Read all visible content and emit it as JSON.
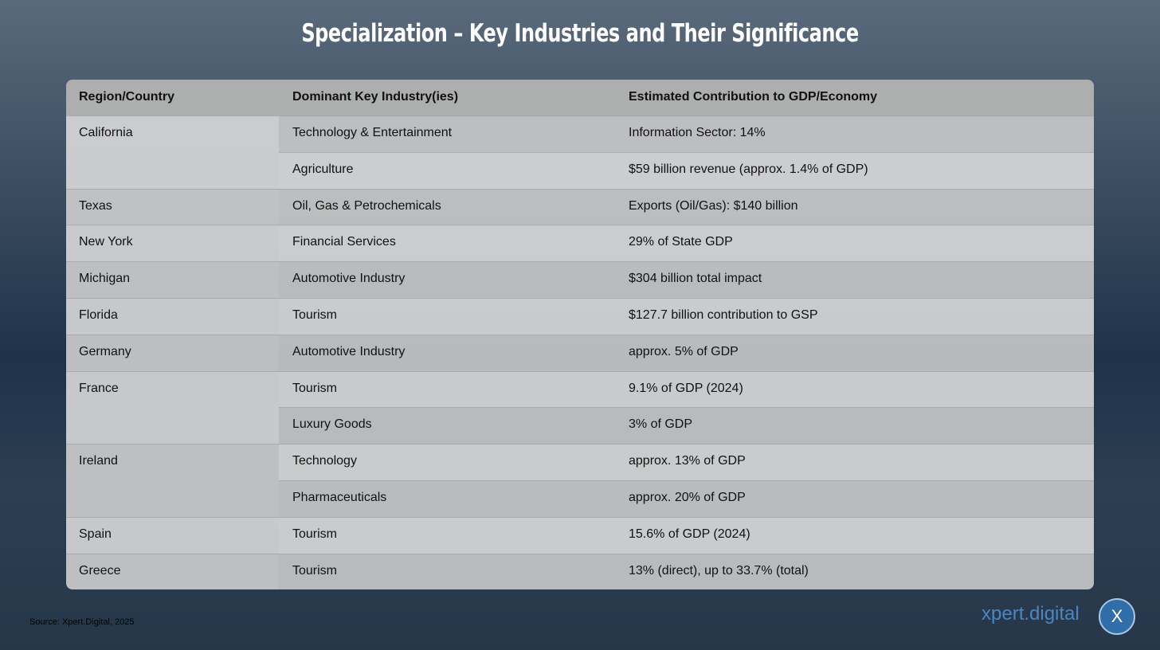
{
  "header": {
    "title": "Specialization – Key Industries and Their Significance"
  },
  "table": {
    "columns": [
      "Region/Country",
      "Dominant Key Industry(ies)",
      "Estimated Contribution to GDP/Economy"
    ],
    "groups": [
      {
        "region": "California",
        "items": [
          {
            "industry": "Technology & Entertainment",
            "contribution": "Information Sector: 14%"
          },
          {
            "industry": "Agriculture",
            "contribution": "$59 billion revenue (approx. 1.4% of GDP)"
          }
        ]
      },
      {
        "region": "Texas",
        "items": [
          {
            "industry": "Oil, Gas & Petrochemicals",
            "contribution": "Exports (Oil/Gas): $140 billion"
          }
        ]
      },
      {
        "region": "New York",
        "items": [
          {
            "industry": "Financial Services",
            "contribution": "29% of State GDP"
          }
        ]
      },
      {
        "region": "Michigan",
        "items": [
          {
            "industry": "Automotive Industry",
            "contribution": "$304 billion total impact"
          }
        ]
      },
      {
        "region": "Florida",
        "items": [
          {
            "industry": "Tourism",
            "contribution": "$127.7 billion contribution to GSP"
          }
        ]
      },
      {
        "region": "Germany",
        "items": [
          {
            "industry": "Automotive Industry",
            "contribution": "approx. 5% of GDP"
          }
        ]
      },
      {
        "region": "France",
        "items": [
          {
            "industry": "Tourism",
            "contribution": "9.1% of GDP (2024)"
          },
          {
            "industry": "Luxury Goods",
            "contribution": "3% of GDP"
          }
        ]
      },
      {
        "region": "Ireland",
        "items": [
          {
            "industry": "Technology",
            "contribution": "approx. 13% of GDP"
          },
          {
            "industry": "Pharmaceuticals",
            "contribution": "approx. 20% of GDP"
          }
        ]
      },
      {
        "region": "Spain",
        "items": [
          {
            "industry": "Tourism",
            "contribution": "15.6% of GDP (2024)"
          }
        ]
      },
      {
        "region": "Greece",
        "items": [
          {
            "industry": "Tourism",
            "contribution": "13% (direct), up to 33.7% (total)"
          }
        ]
      }
    ]
  },
  "footer": {
    "source": "Source: Xpert.Digital, 2025",
    "logo": "xpert.digital",
    "logo_mark": "X"
  }
}
